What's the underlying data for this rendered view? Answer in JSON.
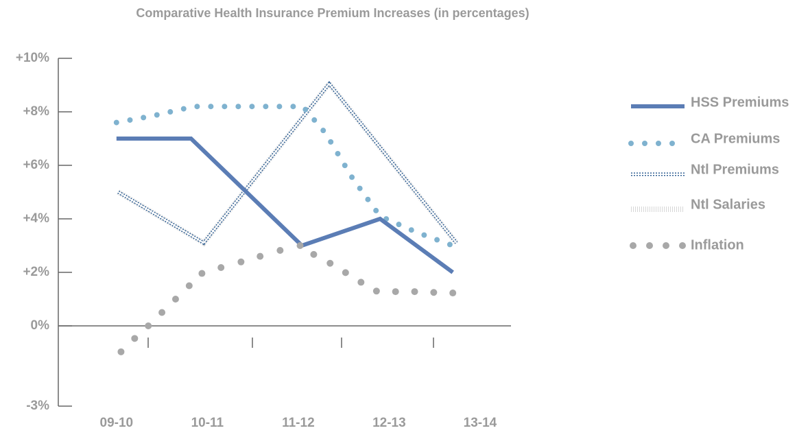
{
  "chart_data": {
    "type": "line",
    "title": "Comparative Health Insurance Premium Increases (in percentages)",
    "categories": [
      "09-10",
      "10-11",
      "11-12",
      "12-13",
      "13-14"
    ],
    "xlim": [
      -0.64,
      4.34
    ],
    "ylim": [
      -3,
      10
    ],
    "yticks": [
      {
        "value": 10,
        "label": "+10%"
      },
      {
        "value": 8,
        "label": "+8%"
      },
      {
        "value": 6,
        "label": "+6%"
      },
      {
        "value": 4,
        "label": "+4%"
      },
      {
        "value": 2,
        "label": "+2%"
      },
      {
        "value": 0,
        "label": "0%"
      },
      {
        "value": -3,
        "label": "-3%"
      }
    ],
    "series": [
      {
        "name": "HSS Premiums",
        "color": "#5b7db5",
        "style": "solid",
        "x": [
          0,
          0.82,
          2.04,
          2.9,
          3.7
        ],
        "values": [
          7,
          7,
          3,
          4,
          2
        ]
      },
      {
        "name": "CA Premiums",
        "color": "#7fb2cf",
        "style": "dotted",
        "x": [
          0,
          0.4,
          0.85,
          2.05,
          2.3,
          2.6,
          2.9,
          3.3,
          3.7
        ],
        "values": [
          7.6,
          7.85,
          8.2,
          8.2,
          7.2,
          5.5,
          4.1,
          3.5,
          3.0
        ]
      },
      {
        "name": "Ntl Premiums",
        "color": "#2f5f93",
        "style": "zigzag",
        "x": [
          0.02,
          0.96,
          2.34,
          3.74
        ],
        "values": [
          5.0,
          3.1,
          9.05,
          3.1
        ]
      },
      {
        "name": "Ntl Salaries",
        "color": "#b0b0b0",
        "style": "hatched",
        "x": [
          0.02,
          0.96,
          2.34,
          3.74
        ],
        "values": [
          5.0,
          3.1,
          9.05,
          3.1
        ]
      },
      {
        "name": "Inflation",
        "color": "#a8a8a8",
        "style": "dots",
        "x": [
          0.05,
          0.2,
          0.35,
          0.5,
          0.65,
          0.8,
          0.94,
          1.15,
          1.37,
          1.58,
          1.8,
          2.02,
          2.17,
          2.35,
          2.52,
          2.69,
          2.86,
          3.07,
          3.28,
          3.49,
          3.7
        ],
        "values": [
          -0.97,
          -0.47,
          0,
          0.5,
          1.0,
          1.5,
          1.96,
          2.18,
          2.39,
          2.6,
          2.82,
          3.0,
          2.67,
          2.34,
          1.99,
          1.63,
          1.3,
          1.28,
          1.28,
          1.25,
          1.23
        ]
      }
    ]
  }
}
